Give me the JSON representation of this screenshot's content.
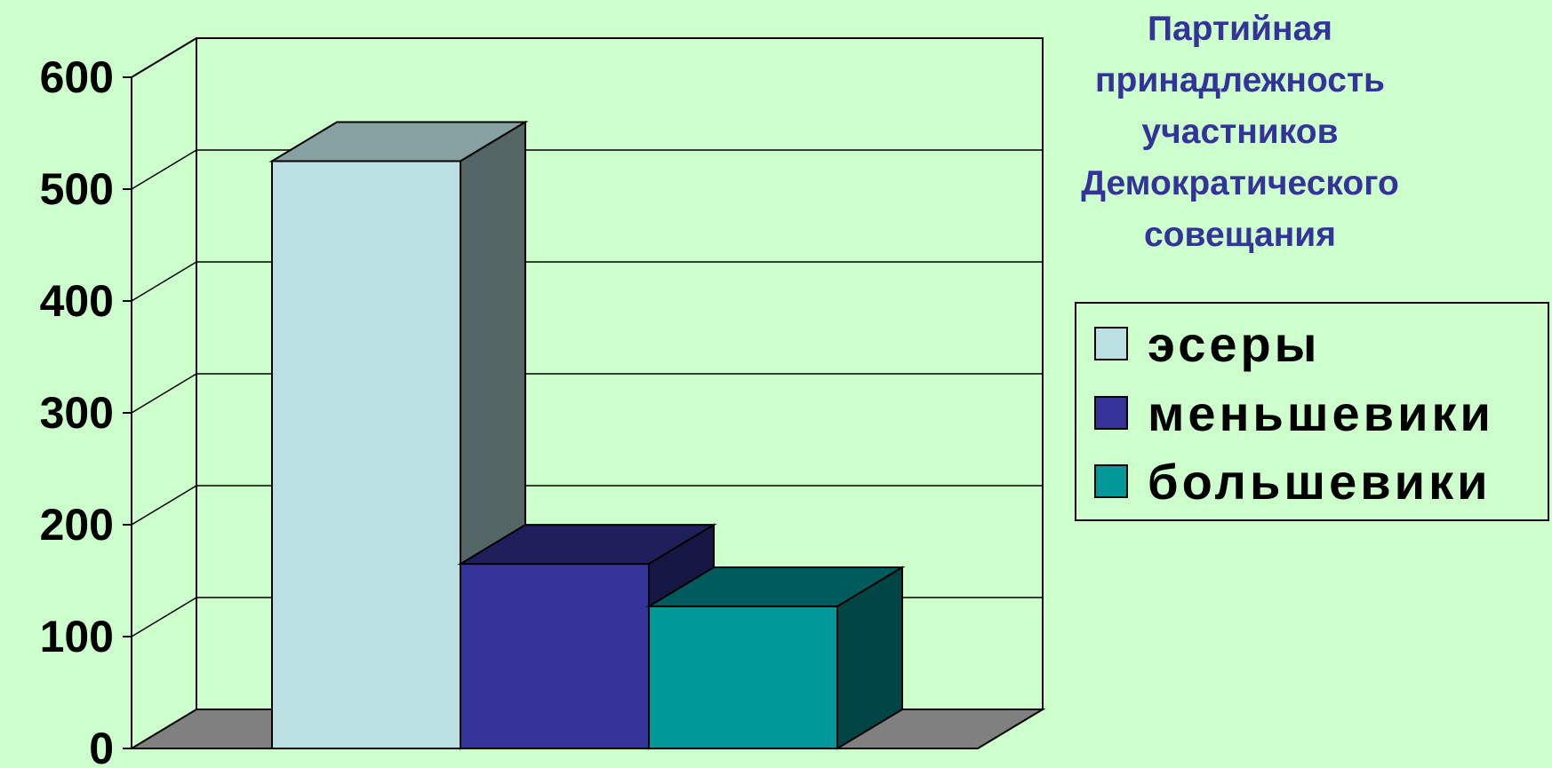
{
  "chart_data": {
    "type": "bar",
    "style": "3d-clustered",
    "title_lines": [
      "Партийная",
      "принадлежность",
      "участников",
      "Демократического",
      "совещания"
    ],
    "series": [
      {
        "name": "эсеры",
        "value": 525,
        "color": "#bbe0e3"
      },
      {
        "name": "меньшевики",
        "value": 165,
        "color": "#333399"
      },
      {
        "name": "большевики",
        "value": 127,
        "color": "#009999"
      }
    ],
    "yticks": [
      "0",
      "100",
      "200",
      "300",
      "400",
      "500",
      "600"
    ],
    "ylim": [
      0,
      600
    ],
    "grid": true,
    "legend_position": "right",
    "background": "#ccffcc"
  }
}
